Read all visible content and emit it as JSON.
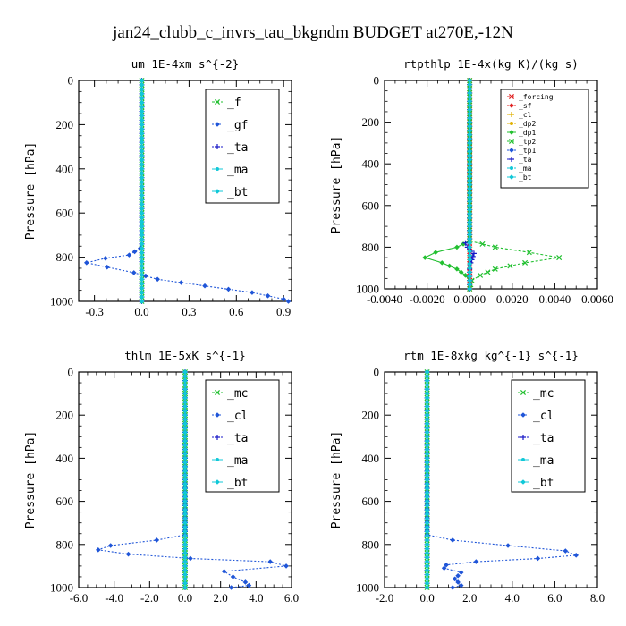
{
  "figure_title": "jan24_clubb_c_invrs_tau_bkgndm  BUDGET at270E,-12N",
  "colors": {
    "green": "#22c030",
    "blue": "#1f55d8",
    "navy": "#1a1ac8",
    "cyan": "#10c8d8",
    "red": "#e02020",
    "yellow": "#e0b000"
  },
  "chart_data": [
    {
      "type": "line",
      "title": "um  1E-4xm s^{-2}",
      "ylabel": "Pressure [hPa]",
      "xlim": [
        -0.4,
        0.95
      ],
      "ylim": [
        1000,
        0
      ],
      "xticks": [
        -0.3,
        0.0,
        0.3,
        0.6,
        0.9
      ],
      "xtick_labels": [
        "-0.3",
        "0.0",
        "0.3",
        "0.6",
        "0.9"
      ],
      "yticks": [
        0,
        200,
        400,
        600,
        800,
        1000
      ],
      "legend": "top-right",
      "series": [
        {
          "name": "_f",
          "color": "#22c030",
          "y": [
            0,
            1000
          ],
          "x": [
            0.0,
            0.0
          ]
        },
        {
          "name": "_gf",
          "color": "#1f55d8",
          "y": [
            0,
            740,
            760,
            790,
            805,
            825,
            845,
            870,
            900,
            930,
            960,
            990,
            1000
          ],
          "x": [
            0.0,
            0.0,
            -0.01,
            -0.08,
            -0.23,
            -0.35,
            -0.22,
            -0.05,
            0.1,
            0.4,
            0.7,
            0.9,
            0.93
          ]
        },
        {
          "name": "_ta",
          "color": "#1a1ac8",
          "y": [
            0,
            1000
          ],
          "x": [
            0.0,
            0.0
          ]
        },
        {
          "name": "_ma",
          "color": "#10c8d8",
          "y": [
            0,
            1000
          ],
          "x": [
            0.0,
            0.0
          ]
        },
        {
          "name": "_bt",
          "color": "#10c8d8",
          "y": [
            0,
            1000
          ],
          "x": [
            0.0,
            0.0
          ]
        }
      ]
    },
    {
      "type": "line",
      "title": "rtpthlp  1E-4x(kg K)/(kg s)",
      "ylabel": "Pressure [hPa]",
      "xlim": [
        -0.004,
        0.006
      ],
      "ylim": [
        1000,
        0
      ],
      "xticks": [
        -0.004,
        -0.002,
        0.0,
        0.002,
        0.004,
        0.006
      ],
      "xtick_labels": [
        "-0.0040",
        "-0.0020",
        "0.0000",
        "0.0020",
        "0.0040",
        "0.0060"
      ],
      "yticks": [
        0,
        200,
        400,
        600,
        800,
        1000
      ],
      "legend": "top-right",
      "series": [
        {
          "name": "_forcing",
          "color": "#e02020",
          "y": [
            0,
            1000
          ],
          "x": [
            0.0,
            0.0
          ]
        },
        {
          "name": "_sf",
          "color": "#e02020",
          "y": [
            0,
            1000
          ],
          "x": [
            0.0,
            0.0
          ]
        },
        {
          "name": "_cl",
          "color": "#e0b000",
          "y": [
            0,
            1000
          ],
          "x": [
            0.0,
            0.0
          ]
        },
        {
          "name": "_dp2",
          "color": "#e0b000",
          "y": [
            0,
            1000
          ],
          "x": [
            0.0,
            0.0
          ]
        },
        {
          "name": "_dp1",
          "color": "#22c030",
          "y": [
            0,
            770,
            800,
            825,
            850,
            875,
            905,
            935,
            960,
            1000
          ],
          "x": [
            0.0,
            0.0,
            -0.0006,
            -0.0016,
            -0.0021,
            -0.0013,
            -0.0006,
            -0.0002,
            0.0,
            0.0
          ]
        },
        {
          "name": "_tp2",
          "color": "#22c030",
          "y": [
            0,
            770,
            800,
            825,
            850,
            875,
            905,
            935,
            960,
            1000
          ],
          "x": [
            0.0,
            0.0,
            0.0012,
            0.0028,
            0.0042,
            0.0026,
            0.0012,
            0.0005,
            0.0001,
            0.0
          ]
        },
        {
          "name": "_tp1",
          "color": "#1f55d8",
          "y": [
            0,
            1000
          ],
          "x": [
            0.0,
            0.0
          ]
        },
        {
          "name": "_ta",
          "color": "#1a1ac8",
          "y": [
            0,
            760,
            780,
            800,
            830,
            860,
            890,
            920,
            1000
          ],
          "x": [
            0.0,
            0.0,
            -0.0002,
            -0.0001,
            0.0002,
            0.0001,
            0.0,
            0.0,
            0.0
          ]
        },
        {
          "name": "_ma",
          "color": "#10c8d8",
          "y": [
            0,
            1000
          ],
          "x": [
            0.0,
            0.0
          ]
        },
        {
          "name": "_bt",
          "color": "#10c8d8",
          "y": [
            0,
            1000
          ],
          "x": [
            0.0,
            0.0
          ]
        }
      ]
    },
    {
      "type": "line",
      "title": "thlm  1E-5xK s^{-1}",
      "ylabel": "Pressure [hPa]",
      "xlim": [
        -6.0,
        6.0
      ],
      "ylim": [
        1000,
        0
      ],
      "xticks": [
        -6.0,
        -4.0,
        -2.0,
        0.0,
        2.0,
        4.0,
        6.0
      ],
      "xtick_labels": [
        "-6.0",
        "-4.0",
        "-2.0",
        "0.0",
        "2.0",
        "4.0",
        "6.0"
      ],
      "yticks": [
        0,
        200,
        400,
        600,
        800,
        1000
      ],
      "legend": "top-right",
      "series": [
        {
          "name": "_mc",
          "color": "#22c030",
          "y": [
            0,
            1000
          ],
          "x": [
            0.0,
            0.0
          ]
        },
        {
          "name": "_cl",
          "color": "#1f55d8",
          "y": [
            0,
            755,
            780,
            805,
            825,
            845,
            865,
            880,
            900,
            925,
            950,
            975,
            990,
            1000
          ],
          "x": [
            0.0,
            0.0,
            -1.6,
            -4.2,
            -4.9,
            -3.2,
            0.3,
            4.8,
            5.7,
            2.2,
            2.7,
            3.4,
            3.6,
            2.6
          ]
        },
        {
          "name": "_ta",
          "color": "#1a1ac8",
          "y": [
            0,
            1000
          ],
          "x": [
            0.0,
            0.0
          ]
        },
        {
          "name": "_ma",
          "color": "#10c8d8",
          "y": [
            0,
            1000
          ],
          "x": [
            0.0,
            0.0
          ]
        },
        {
          "name": "_bt",
          "color": "#10c8d8",
          "y": [
            0,
            1000
          ],
          "x": [
            0.0,
            0.0
          ]
        }
      ]
    },
    {
      "type": "line",
      "title": "rtm  1E-8xkg kg^{-1} s^{-1}",
      "ylabel": "Pressure [hPa]",
      "xlim": [
        -2.0,
        8.0
      ],
      "ylim": [
        1000,
        0
      ],
      "xticks": [
        -2.0,
        0.0,
        2.0,
        4.0,
        6.0,
        8.0
      ],
      "xtick_labels": [
        "-2.0",
        "0.0",
        "2.0",
        "4.0",
        "6.0",
        "8.0"
      ],
      "yticks": [
        0,
        200,
        400,
        600,
        800,
        1000
      ],
      "legend": "top-right",
      "series": [
        {
          "name": "_mc",
          "color": "#22c030",
          "y": [
            0,
            1000
          ],
          "x": [
            0.0,
            0.0
          ]
        },
        {
          "name": "_cl",
          "color": "#1f55d8",
          "y": [
            0,
            755,
            780,
            805,
            830,
            850,
            865,
            880,
            895,
            910,
            930,
            960,
            990,
            1000
          ],
          "x": [
            0.0,
            0.0,
            1.2,
            3.8,
            6.5,
            7.0,
            5.2,
            2.3,
            0.9,
            0.8,
            1.6,
            1.3,
            1.6,
            1.2
          ]
        },
        {
          "name": "_ta",
          "color": "#1a1ac8",
          "y": [
            0,
            1000
          ],
          "x": [
            0.0,
            0.0
          ]
        },
        {
          "name": "_ma",
          "color": "#10c8d8",
          "y": [
            0,
            1000
          ],
          "x": [
            0.0,
            0.0
          ]
        },
        {
          "name": "_bt",
          "color": "#10c8d8",
          "y": [
            0,
            1000
          ],
          "x": [
            0.0,
            0.0
          ]
        }
      ]
    }
  ]
}
